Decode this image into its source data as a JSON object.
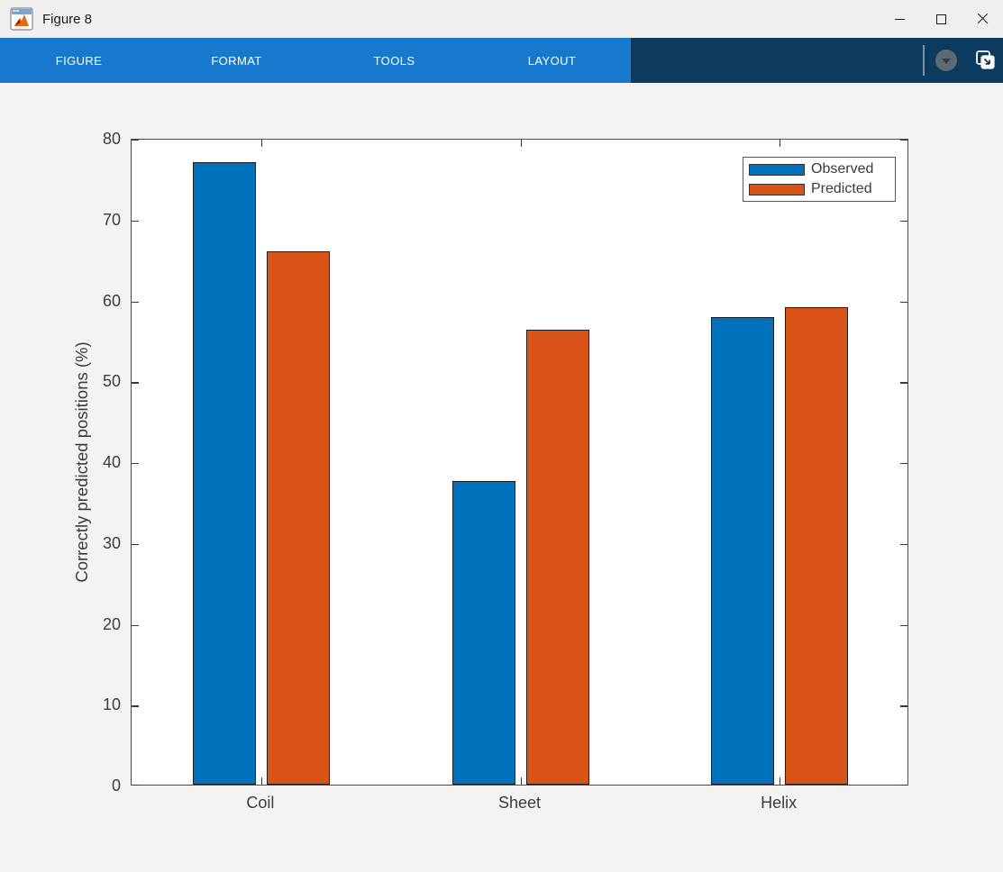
{
  "window": {
    "title": "Figure 8",
    "controls": {
      "minimize": "minimize",
      "maximize": "maximize",
      "close": "close"
    }
  },
  "toolstrip": {
    "tabs": [
      {
        "label": "FIGURE"
      },
      {
        "label": "FORMAT"
      },
      {
        "label": "TOOLS"
      },
      {
        "label": "LAYOUT"
      }
    ],
    "collapse_button_icon": "chevron-down-icon",
    "undock_button_icon": "pop-out-icon",
    "colors": {
      "tab_bg": "#1878cd",
      "right_bg": "#0d3a5f"
    }
  },
  "axes_toolbar": {
    "more_button_icon": "ellipsis-icon"
  },
  "chart_data": {
    "type": "bar",
    "title": "",
    "categories": [
      "Coil",
      "Sheet",
      "Helix"
    ],
    "series": [
      {
        "name": "Observed",
        "color": "#0072BD",
        "values": [
          77,
          37.5,
          57.8
        ]
      },
      {
        "name": "Predicted",
        "color": "#D95319",
        "values": [
          66,
          56.3,
          59
        ]
      }
    ],
    "xlabel": "",
    "ylabel": "Correctly predicted positions (%)",
    "ylim": [
      0,
      80
    ],
    "yticks": [
      0,
      10,
      20,
      30,
      40,
      50,
      60,
      70,
      80
    ],
    "grid": false,
    "legend": {
      "position": "northeast",
      "entries": [
        "Observed",
        "Predicted"
      ]
    },
    "bar_edge_color": "#1f1f1f",
    "axis_color": "#4a4a4a",
    "bar_face_colors": {
      "observed": "#0072BD",
      "predicted": "#D95319"
    }
  }
}
